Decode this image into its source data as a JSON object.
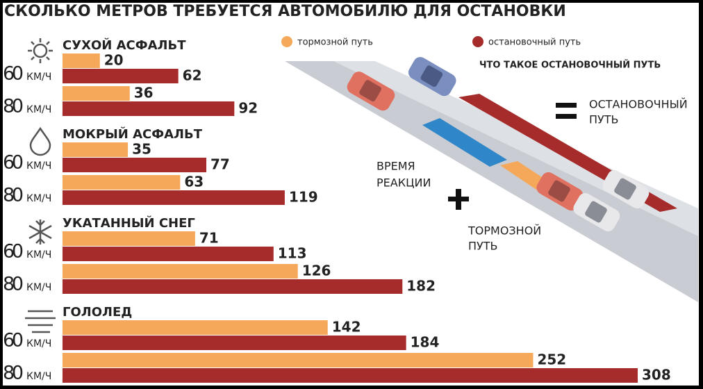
{
  "chart_data": {
    "type": "bar",
    "title": "СКОЛЬКО МЕТРОВ ТРЕБУЕТСЯ АВТОМОБИЛЮ ДЛЯ ОСТАНОВКИ",
    "groups": [
      "СУХОЙ АСФАЛЬТ",
      "МОКРЫЙ АСФАЛЬТ",
      "УКАТАННЫЙ СНЕГ",
      "ГОЛОЛЕД"
    ],
    "speeds": [
      "60",
      "80"
    ],
    "speed_unit": "КМ/Ч",
    "series": [
      {
        "name": "тормозной путь",
        "color": "#f5a85a",
        "values": [
          20,
          36,
          35,
          63,
          71,
          126,
          142,
          252
        ]
      },
      {
        "name": "остановочный путь",
        "color": "#a62b2b",
        "values": [
          62,
          92,
          77,
          119,
          113,
          182,
          184,
          308
        ]
      }
    ],
    "diagram": {
      "title": "ЧТО ТАКОЕ ОСТАНОВОЧНЫЙ ПУТЬ",
      "stopping": [
        "ОСТАНОВОЧНЫЙ",
        "ПУТЬ"
      ],
      "reaction": [
        "ВРЕМЯ",
        "РЕАКЦИИ"
      ],
      "braking": [
        "ТОРМОЗНОЙ",
        "ПУТЬ"
      ]
    }
  }
}
